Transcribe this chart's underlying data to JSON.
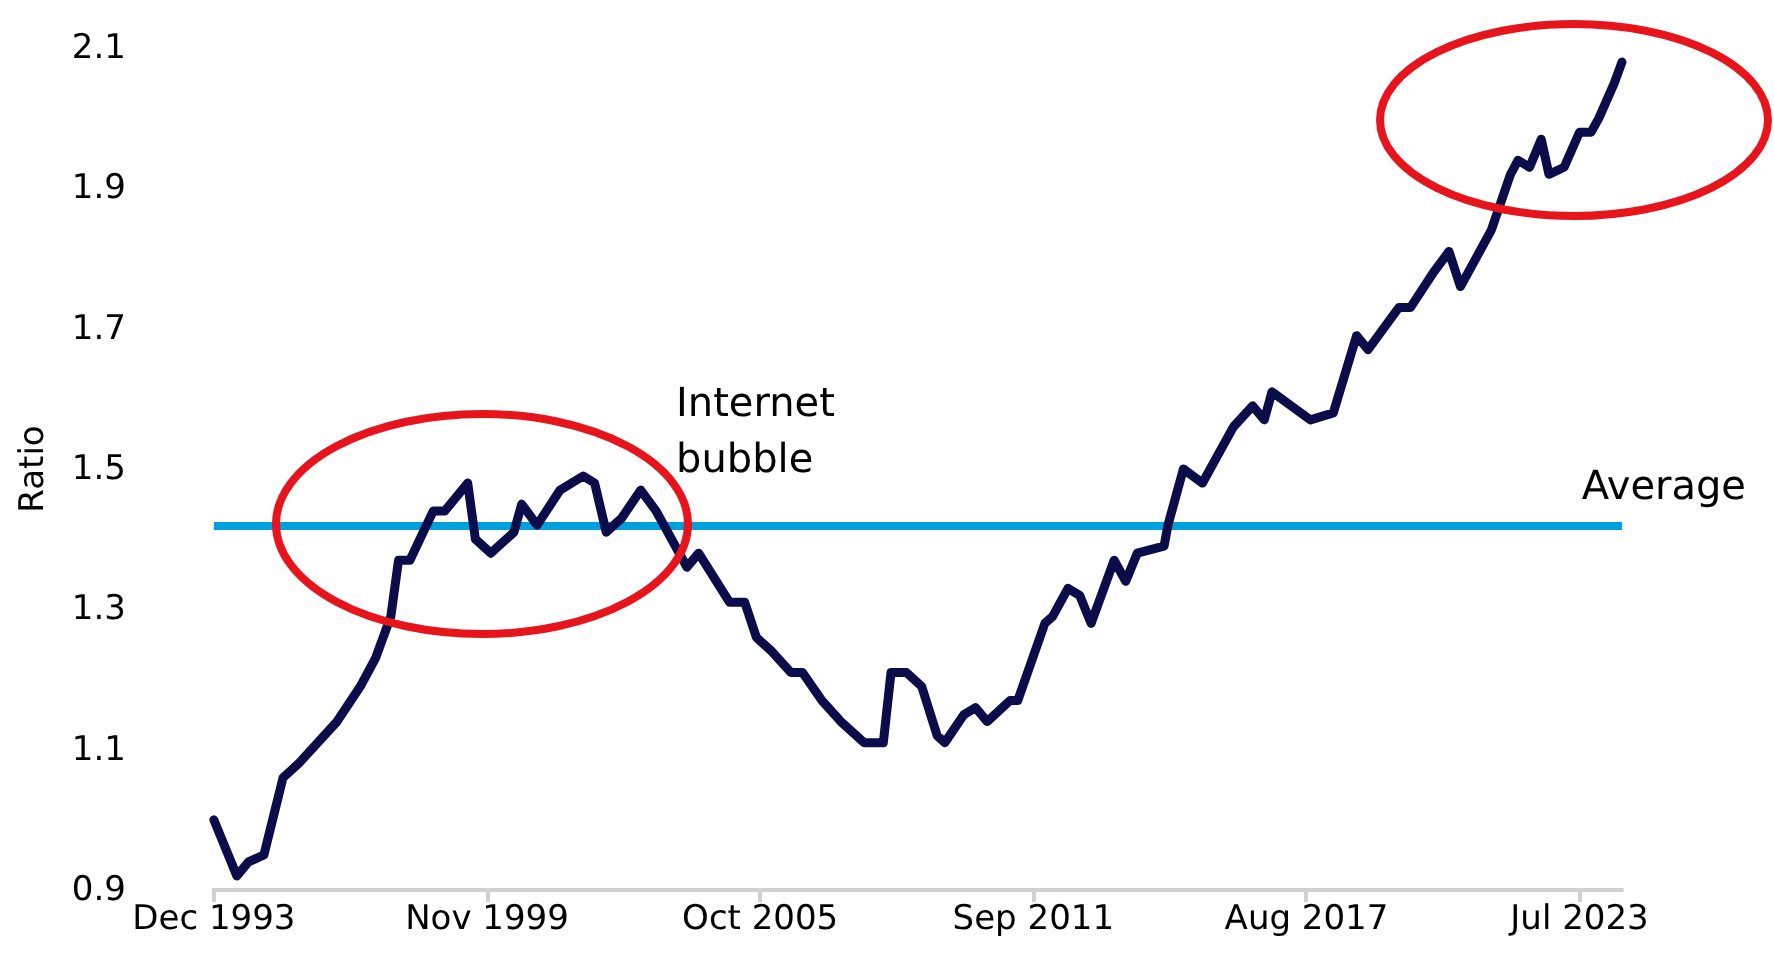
{
  "chart_data": {
    "type": "line",
    "ylabel": "Ratio",
    "x": [
      "1993-12",
      "1994-06",
      "1994-09",
      "1995-01",
      "1995-06",
      "1995-10",
      "1996-08",
      "1997-02",
      "1997-06",
      "1997-10",
      "1997-12",
      "1998-03",
      "1998-09",
      "1998-12",
      "1999-06",
      "1999-08",
      "1999-12",
      "2000-06",
      "2000-08",
      "2000-12",
      "2001-06",
      "2001-12",
      "2002-03",
      "2002-06",
      "2002-10",
      "2003-03",
      "2003-07",
      "2004-03",
      "2004-06",
      "2005-02",
      "2005-06",
      "2005-09",
      "2006-01",
      "2006-06",
      "2006-09",
      "2007-02",
      "2007-07",
      "2008-01",
      "2008-06",
      "2008-08",
      "2008-12",
      "2009-04",
      "2009-08",
      "2009-10",
      "2010-03",
      "2010-06",
      "2010-09",
      "2011-03",
      "2011-05",
      "2011-12",
      "2012-02",
      "2012-06",
      "2012-09",
      "2012-12",
      "2013-06",
      "2013-09",
      "2013-12",
      "2014-07",
      "2014-08",
      "2014-12",
      "2015-05",
      "2015-10",
      "2016-01",
      "2016-06",
      "2016-09",
      "2016-11",
      "2017-09",
      "2018-03",
      "2018-09",
      "2018-12",
      "2019-08",
      "2019-11",
      "2020-05",
      "2020-09",
      "2020-12",
      "2021-08",
      "2022-01",
      "2022-03",
      "2022-06",
      "2022-09",
      "2022-11",
      "2023-03",
      "2023-07",
      "2023-10",
      "2023-12",
      "2024-04",
      "2024-06"
    ],
    "series": [
      {
        "color": "#0b0c4a",
        "values": [
          1.0,
          0.92,
          0.94,
          0.95,
          1.06,
          1.08,
          1.14,
          1.19,
          1.23,
          1.29,
          1.37,
          1.37,
          1.44,
          1.44,
          1.48,
          1.4,
          1.38,
          1.41,
          1.45,
          1.42,
          1.47,
          1.49,
          1.48,
          1.41,
          1.43,
          1.47,
          1.44,
          1.36,
          1.38,
          1.31,
          1.31,
          1.26,
          1.24,
          1.21,
          1.21,
          1.17,
          1.14,
          1.11,
          1.11,
          1.21,
          1.21,
          1.19,
          1.12,
          1.11,
          1.15,
          1.16,
          1.14,
          1.17,
          1.17,
          1.28,
          1.29,
          1.33,
          1.32,
          1.28,
          1.37,
          1.34,
          1.38,
          1.39,
          1.42,
          1.5,
          1.48,
          1.53,
          1.56,
          1.59,
          1.57,
          1.61,
          1.57,
          1.58,
          1.69,
          1.67,
          1.73,
          1.73,
          1.78,
          1.81,
          1.76,
          1.84,
          1.92,
          1.94,
          1.93,
          1.97,
          1.92,
          1.93,
          1.98,
          1.98,
          2.0,
          2.05,
          2.08
        ]
      }
    ],
    "xlim": [
      "1993-12",
      "2024-06"
    ],
    "xticks": [
      {
        "value": "1993-12",
        "label": "Dec 1993"
      },
      {
        "value": "1999-11",
        "label": "Nov 1999"
      },
      {
        "value": "2005-10",
        "label": "Oct 2005"
      },
      {
        "value": "2011-09",
        "label": "Sep 2011"
      },
      {
        "value": "2017-08",
        "label": "Aug 2017"
      },
      {
        "value": "2023-07",
        "label": "Jul 2023"
      }
    ],
    "ylim": [
      0.9,
      2.1
    ],
    "yticks": [
      0.9,
      1.1,
      1.3,
      1.5,
      1.7,
      1.9,
      2.1
    ],
    "ref_lines": [
      {
        "axis": "y",
        "value": 1.42,
        "label": "Average",
        "color": "#00a0dc"
      }
    ],
    "annotations": [
      "Internet bubble"
    ],
    "grid": false,
    "marker": "none",
    "line_style": "solid"
  }
}
